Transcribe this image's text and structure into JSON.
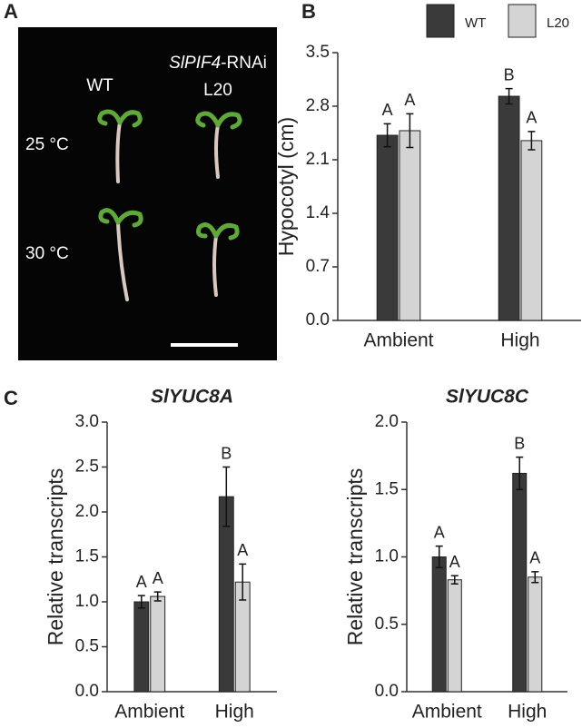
{
  "panel_labels": [
    "A",
    "B",
    "C"
  ],
  "photo": {
    "genotype_italic": "SlPIF4",
    "genotype_suffix": "-RNAi",
    "wt": "WT",
    "line": "L20",
    "temp_1": "25 °C",
    "temp_2": "30 °C"
  },
  "chart_data": [
    {
      "type": "bar",
      "ylabel": "Hypocotyl (cm)",
      "categories": [
        "Ambient",
        "High"
      ],
      "ylim": [
        0,
        3.5
      ],
      "yticks": [
        {
          "value": 0,
          "label": "0.0"
        },
        0.7,
        1.4,
        2.1,
        2.8,
        3.5
      ],
      "legend": true,
      "series": [
        {
          "name": "WT",
          "color": "#3a3a3a",
          "values": [
            2.42,
            2.93
          ],
          "errors": [
            0.15,
            0.1
          ],
          "letters": [
            "A",
            "B"
          ]
        },
        {
          "name": "L20",
          "color": "#d4d4d4",
          "values": [
            2.48,
            2.35
          ],
          "errors": [
            0.22,
            0.12
          ],
          "letters": [
            "A",
            "A"
          ]
        }
      ]
    },
    {
      "type": "bar",
      "title": "SlYUC8A",
      "ylabel": "Relative transcripts",
      "categories": [
        "Ambient",
        "High"
      ],
      "ylim": [
        0,
        3
      ],
      "yticks": [
        {
          "value": 0,
          "label": "0.0"
        },
        0.5,
        {
          "value": 1,
          "label": "1.0"
        },
        1.5,
        {
          "value": 2,
          "label": "2.0"
        },
        2.5,
        {
          "value": 3,
          "label": "3.0"
        }
      ],
      "legend": false,
      "series": [
        {
          "name": "WT",
          "color": "#3a3a3a",
          "values": [
            1.0,
            2.17
          ],
          "errors": [
            0.07,
            0.33
          ],
          "letters": [
            "A",
            "B"
          ]
        },
        {
          "name": "L20",
          "color": "#d4d4d4",
          "values": [
            1.06,
            1.22
          ],
          "errors": [
            0.05,
            0.2
          ],
          "letters": [
            "A",
            "A"
          ]
        }
      ]
    },
    {
      "type": "bar",
      "title": "SlYUC8C",
      "ylabel": "Relative transcripts",
      "categories": [
        "Ambient",
        "High"
      ],
      "ylim": [
        0,
        2
      ],
      "yticks": [
        {
          "value": 0,
          "label": "0.0"
        },
        0.5,
        {
          "value": 1,
          "label": "1.0"
        },
        1.5,
        {
          "value": 2,
          "label": "2.0"
        }
      ],
      "legend": false,
      "series": [
        {
          "name": "WT",
          "color": "#3a3a3a",
          "values": [
            1.0,
            1.62
          ],
          "errors": [
            0.08,
            0.12
          ],
          "letters": [
            "A",
            "B"
          ]
        },
        {
          "name": "L20",
          "color": "#d4d4d4",
          "values": [
            0.83,
            0.85
          ],
          "errors": [
            0.03,
            0.04
          ],
          "letters": [
            "A",
            "A"
          ]
        }
      ]
    }
  ]
}
